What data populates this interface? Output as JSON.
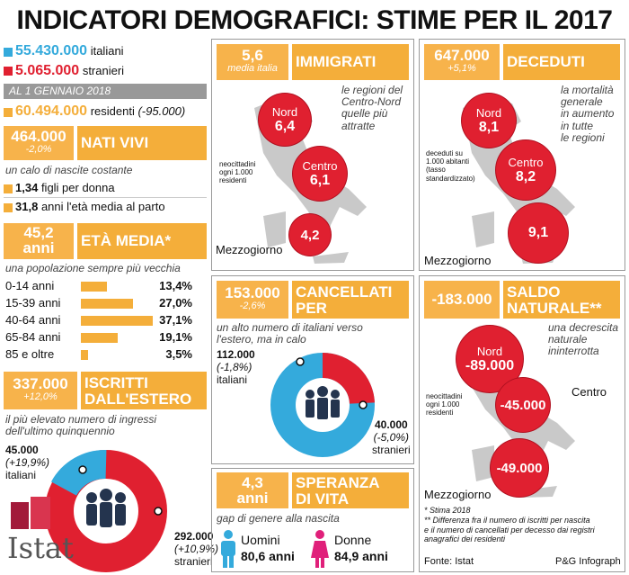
{
  "title": "INDICATORI DEMOGRAFICI: STIME PER IL 2017",
  "colors": {
    "gold": "#f4ae3a",
    "red": "#e02030",
    "blue": "#34aadc",
    "grey": "#c9c9c9",
    "pink": "#e0207a"
  },
  "left": {
    "italiani_value": "55.430.000",
    "italiani_label": "italiani",
    "stranieri_value": "5.065.000",
    "stranieri_label": "stranieri",
    "date_banner": "AL 1 GENNAIO 2018",
    "residenti_value": "60.494.000",
    "residenti_label": "residenti",
    "residenti_delta": "(-95.000)",
    "nati_value": "464.000",
    "nati_delta": "-2,0%",
    "nati_label": "NATI VIVI",
    "nati_caption": "un calo di nascite costante",
    "figli_value": "1,34",
    "figli_label": "figli per donna",
    "eta_parto_value": "31,8",
    "eta_parto_label": "anni l'età media al parto",
    "eta_value": "45,2",
    "eta_unit": "anni",
    "eta_label": "ETÀ MEDIA*",
    "eta_caption": "una popolazione sempre più vecchia",
    "age_groups": [
      {
        "label": "0-14 anni",
        "pct": "13,4%",
        "value": 13.4
      },
      {
        "label": "15-39 anni",
        "pct": "27,0%",
        "value": 27.0
      },
      {
        "label": "40-64 anni",
        "pct": "37,1%",
        "value": 37.1
      },
      {
        "label": "65-84 anni",
        "pct": "19,1%",
        "value": 19.1
      },
      {
        "label": "85 e oltre",
        "pct": "3,5%",
        "value": 3.5
      }
    ],
    "iscritti_value": "337.000",
    "iscritti_delta": "+12,0%",
    "iscritti_label1": "ISCRITTI",
    "iscritti_label2": "DALL'ESTERO",
    "iscritti_caption1": "il più elevato numero di ingressi",
    "iscritti_caption2": "dell'ultimo quinquennio",
    "it_value": "45.000",
    "it_delta": "(+19,9%)",
    "it_label": "italiani",
    "str_value": "292.000",
    "str_delta": "(+10,9%)",
    "str_label": "stranieri",
    "istat": "Istat"
  },
  "immigrati": {
    "value": "5,6",
    "sub": "media italia",
    "label": "IMMIGRATI",
    "caption1": "le regioni del",
    "caption2": "Centro-Nord",
    "caption3": "quelle più",
    "caption4": "attratte",
    "note1": "neocittadini",
    "note2": "ogni 1.000",
    "note3": "residenti",
    "nord_label": "Nord",
    "nord_value": "6,4",
    "centro_label": "Centro",
    "centro_value": "6,1",
    "sud_value": "4,2",
    "sud_label": "Mezzogiorno"
  },
  "deceduti": {
    "value": "647.000",
    "delta": "+5,1%",
    "label": "DECEDUTI",
    "caption1": "la mortalità",
    "caption2": "generale",
    "caption3": "in aumento",
    "caption4": "in tutte",
    "caption5": "le regioni",
    "note1": "deceduti su",
    "note2": "1.000 abitanti",
    "note3": "(tasso",
    "note4": "standardizzato)",
    "nord_label": "Nord",
    "nord_value": "8,1",
    "centro_label": "Centro",
    "centro_value": "8,2",
    "sud_value": "9,1",
    "sud_label": "Mezzogiorno"
  },
  "cancellati": {
    "value": "153.000",
    "delta": "-2,6%",
    "label1": "CANCELLATI",
    "label2": "PER L'ESTERO",
    "caption1": "un alto numero di italiani verso",
    "caption2": "l'estero, ma in calo",
    "it_value": "112.000",
    "it_delta": "(-1,8%)",
    "it_label": "italiani",
    "str_value": "40.000",
    "str_delta": "(-5,0%)",
    "str_label": "stranieri"
  },
  "saldo": {
    "value": "-183.000",
    "label1": "SALDO",
    "label2": "NATURALE**",
    "caption1": "una decrescita",
    "caption2": "naturale",
    "caption3": "ininterrotta",
    "note1": "neocittadini",
    "note2": "ogni 1.000",
    "note3": "residenti",
    "nord_label": "Nord",
    "nord_value": "-89.000",
    "centro_label": "Centro",
    "centro_value": "-45.000",
    "sud_value": "-49.000",
    "sud_label": "Mezzogiorno"
  },
  "speranza": {
    "value": "4,3",
    "unit": "anni",
    "label1": "SPERANZA",
    "label2": "DI VITA",
    "caption": "gap di genere alla nascita",
    "men_label": "Uomini",
    "men_value": "80,6 anni",
    "women_label": "Donne",
    "women_value": "84,9 anni"
  },
  "footnotes": {
    "n1": "* Stima 2018",
    "n2": "** Differenza fra il numero di iscritti per nascita",
    "n3": "e il numero di cancellati per decesso dai registri",
    "n4": "anagrafici dei residenti",
    "source": "Fonte: Istat",
    "credit": "P&G Infograph"
  }
}
